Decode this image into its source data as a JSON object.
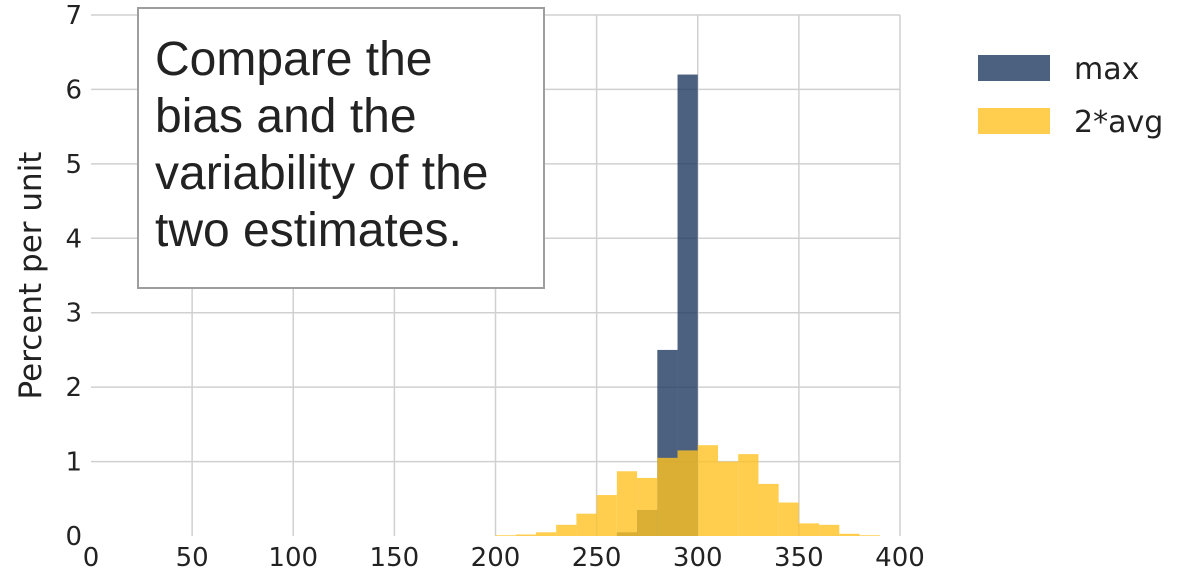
{
  "chart_data": {
    "type": "bar",
    "subtype": "overlaid-histogram",
    "ylabel": "Percent per unit",
    "xlabel": "",
    "xlim": [
      0,
      400
    ],
    "ylim": [
      0,
      7
    ],
    "x_ticks": [
      0,
      50,
      100,
      150,
      200,
      250,
      300,
      350,
      400
    ],
    "y_ticks": [
      0,
      1,
      2,
      3,
      4,
      5,
      6,
      7
    ],
    "grid": true,
    "legend_position": "outside-right-top",
    "annotation": "Compare the bias and the variability of the two estimates.",
    "series": [
      {
        "name": "max",
        "color": "#1f3a5f",
        "bins": [
          {
            "start": 260,
            "end": 270,
            "value": 0.05
          },
          {
            "start": 270,
            "end": 280,
            "value": 0.35
          },
          {
            "start": 280,
            "end": 290,
            "value": 2.5
          },
          {
            "start": 290,
            "end": 300,
            "value": 6.2
          }
        ]
      },
      {
        "name": "2*avg",
        "color": "#ffc222",
        "bins": [
          {
            "start": 200,
            "end": 210,
            "value": 0.01
          },
          {
            "start": 210,
            "end": 220,
            "value": 0.02
          },
          {
            "start": 220,
            "end": 230,
            "value": 0.05
          },
          {
            "start": 230,
            "end": 240,
            "value": 0.15
          },
          {
            "start": 240,
            "end": 250,
            "value": 0.3
          },
          {
            "start": 250,
            "end": 260,
            "value": 0.55
          },
          {
            "start": 260,
            "end": 270,
            "value": 0.87
          },
          {
            "start": 270,
            "end": 280,
            "value": 0.78
          },
          {
            "start": 280,
            "end": 290,
            "value": 1.05
          },
          {
            "start": 290,
            "end": 300,
            "value": 1.15
          },
          {
            "start": 300,
            "end": 310,
            "value": 1.22
          },
          {
            "start": 310,
            "end": 320,
            "value": 1.0
          },
          {
            "start": 320,
            "end": 330,
            "value": 1.1
          },
          {
            "start": 330,
            "end": 340,
            "value": 0.7
          },
          {
            "start": 340,
            "end": 350,
            "value": 0.45
          },
          {
            "start": 350,
            "end": 360,
            "value": 0.17
          },
          {
            "start": 360,
            "end": 370,
            "value": 0.15
          },
          {
            "start": 370,
            "end": 380,
            "value": 0.03
          },
          {
            "start": 380,
            "end": 390,
            "value": 0.01
          }
        ]
      }
    ]
  }
}
